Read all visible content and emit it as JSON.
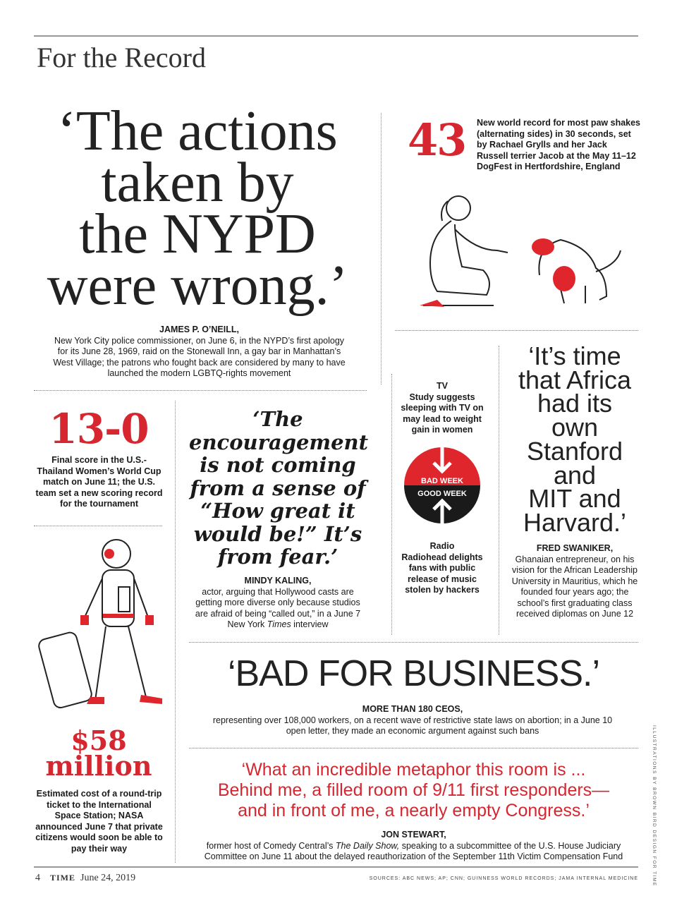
{
  "header": {
    "section_title": "For the Record"
  },
  "nypd": {
    "quote_lines": [
      "‘The actions",
      "taken by",
      "the NYPD",
      "were wrong.’"
    ],
    "name": "JAMES P. O’NEILL,",
    "desc": "New York City police commissioner, on June 6, in the NYPD’s first apology for its June 28, 1969, raid on the Stonewall Inn, a gay bar in Manhattan’s West Village; the patrons who fought back are considered by many to have launched the modern LGBTQ-rights movement"
  },
  "paw": {
    "number": "43",
    "desc": "New world record for most paw shakes (alternating sides) in 30 seconds, set by Rachael Grylls and her Jack Russell terrier Jacob at the May 11–12 DogFest in Hertfordshire, England"
  },
  "score": {
    "number": "13-0",
    "desc": "Final score in the U.S.-Thailand Women’s World Cup match on June 11; the U.S. team set a new scoring record for the tournament"
  },
  "kaling": {
    "quote": "‘The encouragement is not coming from a sense of “How great it would be!” It’s from fear.’",
    "name": "MINDY KALING,",
    "desc_pre": "actor, arguing that Hollywood casts are getting more diverse only because studios are afraid of being “called out,” in a June 7 New York ",
    "desc_italic": "Times",
    "desc_post": " interview"
  },
  "week": {
    "bad_title": "TV",
    "bad_desc": "Study suggests sleeping with TV on may lead to weight gain in women",
    "bad_label": "BAD WEEK",
    "good_label": "GOOD WEEK",
    "good_title": "Radio",
    "good_desc": "Radiohead delights fans with public release of music stolen by hackers",
    "colors": {
      "bad": "#e0262d",
      "good": "#1a1a1a"
    }
  },
  "swaniker": {
    "quote_lines": [
      "‘It’s time",
      "that Africa",
      "had its",
      "own",
      "Stanford",
      "and",
      "MIT and",
      "Harvard.’"
    ],
    "name": "FRED SWANIKER,",
    "desc": "Ghanaian entrepreneur, on his vision for the African Leadership University in Mauritius, which he founded four years ago; the school’s first graduating class received diplomas on June 12"
  },
  "space": {
    "number_line1": "$58",
    "number_line2": "million",
    "desc": "Estimated cost of a round-trip ticket to the International Space Station; NASA announced June 7 that private citizens would soon be able to pay their way"
  },
  "ceos": {
    "quote": "‘BAD FOR BUSINESS.’",
    "name": "MORE THAN 180 CEOS,",
    "desc": "representing over 108,000 workers, on a recent wave of restrictive state laws on abortion; in a June 10 open letter, they made an economic argument against such bans"
  },
  "stewart": {
    "quote_lines": [
      "‘What an incredible metaphor this room is ...",
      "Behind me, a filled room of 9/11 first responders—",
      "and in front of me, a nearly empty Congress.’"
    ],
    "name": "JON STEWART,",
    "desc_pre": "former host of Comedy Central’s ",
    "desc_italic": "The Daily Show,",
    "desc_post": " speaking to a subcommittee of the U.S. House Judiciary Committee on June 11 about the delayed reauthorization of the September 11th Victim Compensation Fund"
  },
  "credit": "ILLUSTRATIONS BY BROWN BIRD DESIGN FOR TIME",
  "footer": {
    "page": "4",
    "magazine": "TIME",
    "date": "June 24, 2019",
    "sources": "SOURCES: ABC NEWS; AP; CNN; GUINNESS WORLD RECORDS; JAMA INTERNAL MEDICINE"
  },
  "accent": "#d6262f"
}
